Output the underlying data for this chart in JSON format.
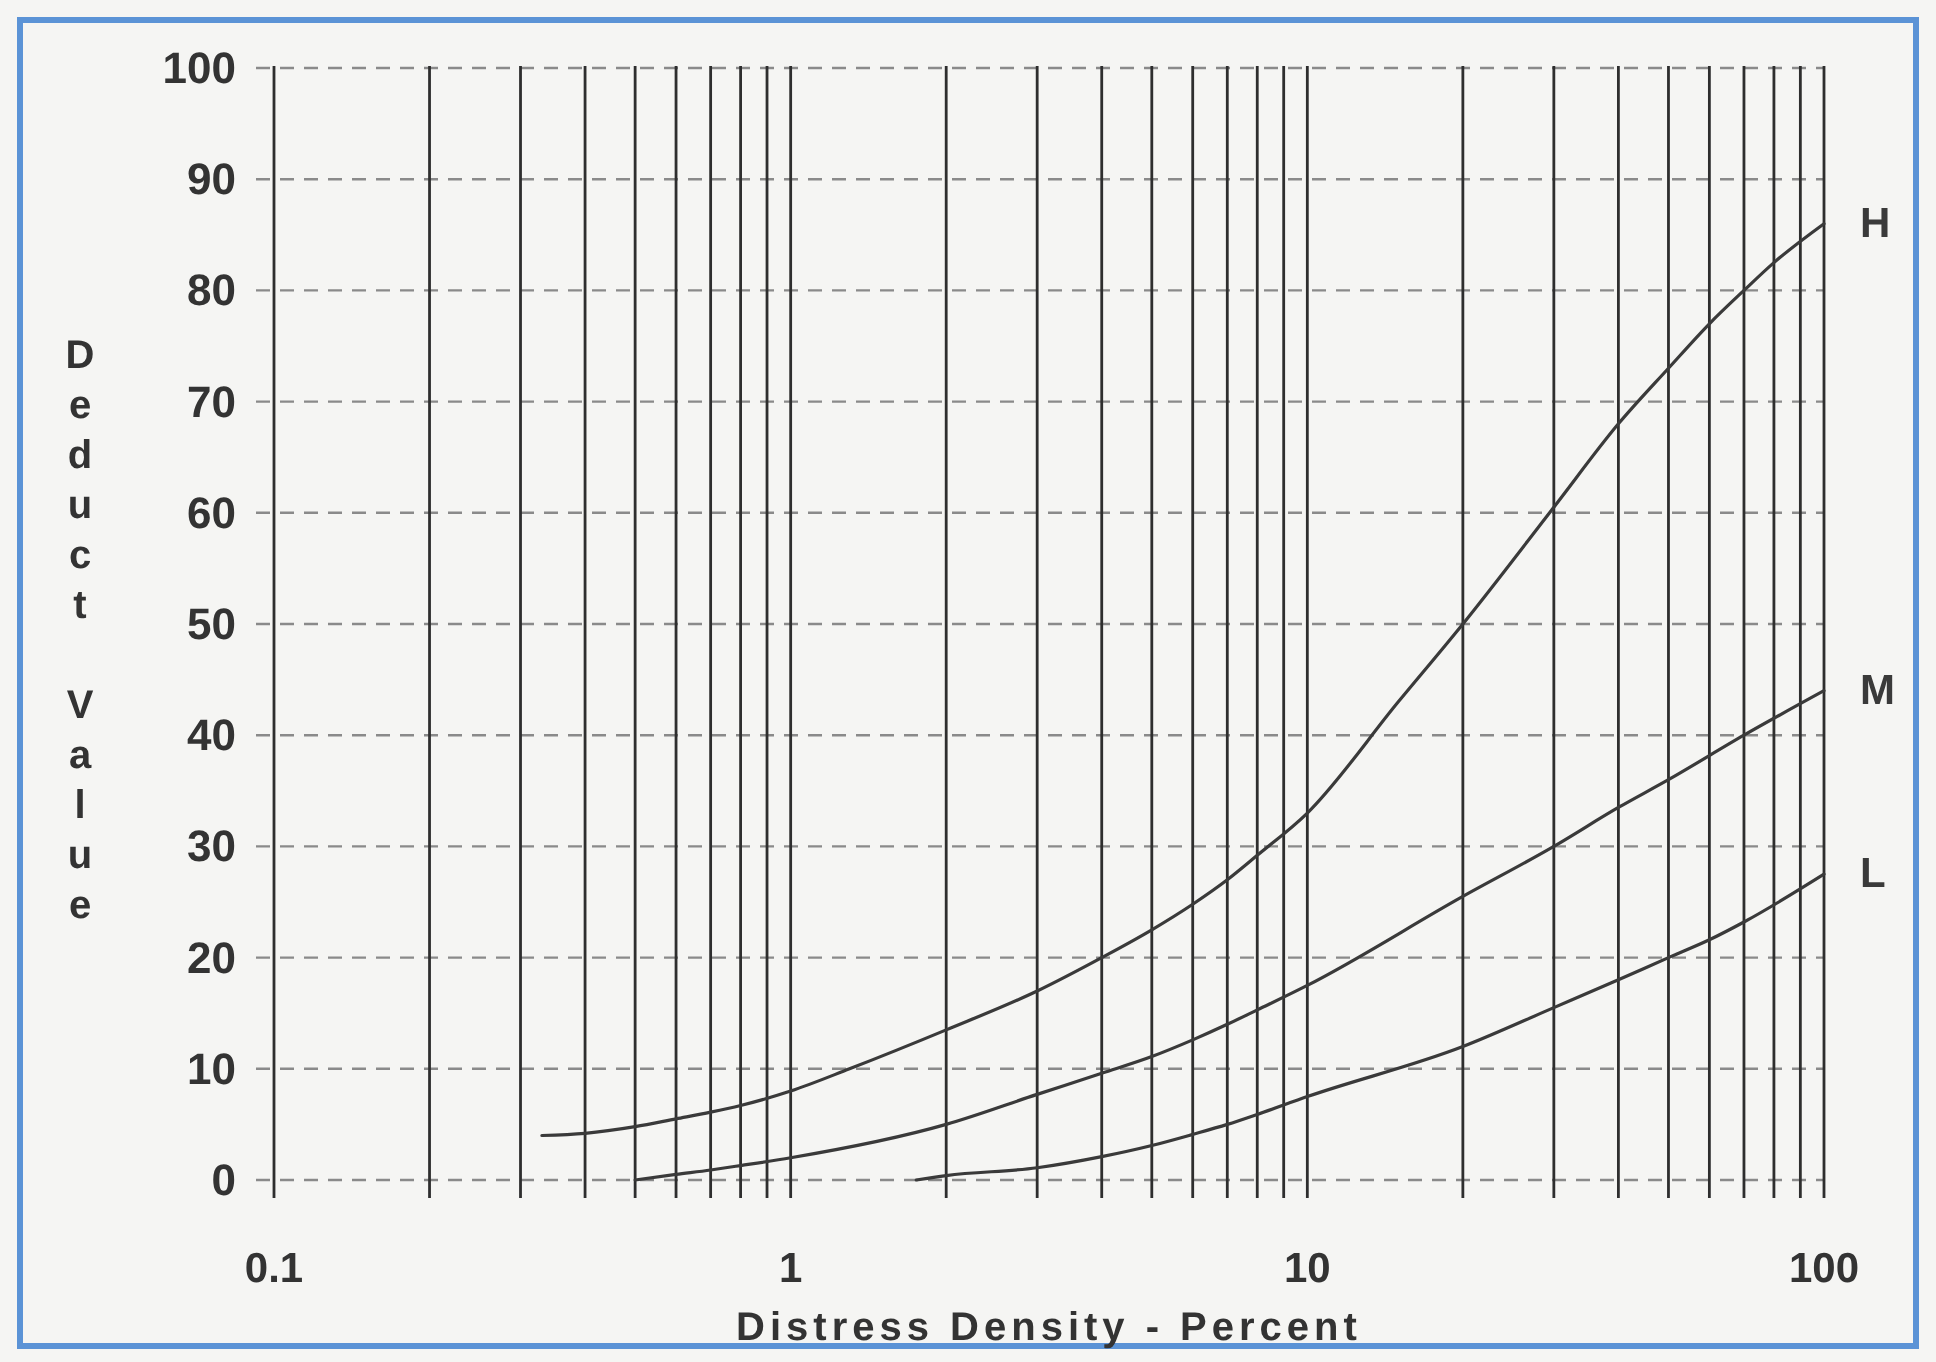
{
  "chart_data": {
    "type": "line",
    "xlabel": "Distress Density - Percent",
    "ylabel": "Deduct Value",
    "log": "x",
    "grid": true,
    "xlim": [
      0.1,
      100
    ],
    "ylim": [
      0,
      100
    ],
    "xticks": [
      0.1,
      {
        "value": 0.2,
        "label": null
      },
      {
        "value": 0.3,
        "label": null
      },
      {
        "value": 0.4,
        "label": null
      },
      {
        "value": 0.5,
        "label": null
      },
      {
        "value": 0.6,
        "label": null
      },
      {
        "value": 0.7,
        "label": null
      },
      {
        "value": 0.8,
        "label": null
      },
      {
        "value": 0.9,
        "label": null
      },
      1,
      {
        "value": 2,
        "label": null
      },
      {
        "value": 3,
        "label": null
      },
      {
        "value": 4,
        "label": null
      },
      {
        "value": 5,
        "label": null
      },
      {
        "value": 6,
        "label": null
      },
      {
        "value": 7,
        "label": null
      },
      {
        "value": 8,
        "label": null
      },
      {
        "value": 9,
        "label": null
      },
      10,
      {
        "value": 20,
        "label": null
      },
      {
        "value": 30,
        "label": null
      },
      {
        "value": 40,
        "label": null
      },
      {
        "value": 50,
        "label": null
      },
      {
        "value": 60,
        "label": null
      },
      {
        "value": 70,
        "label": null
      },
      {
        "value": 80,
        "label": null
      },
      {
        "value": 90,
        "label": null
      },
      100
    ],
    "yticks": [
      0,
      10,
      20,
      30,
      40,
      50,
      60,
      70,
      80,
      90,
      100
    ],
    "series": [
      {
        "name": "H",
        "color": "#3a3a3a",
        "x": [
          0.33,
          0.4,
          0.5,
          0.6,
          0.7,
          0.8,
          1,
          1.3,
          2,
          3,
          4,
          5,
          6,
          7,
          8,
          10,
          15,
          20,
          30,
          40,
          50,
          60,
          70,
          80,
          100
        ],
        "values": [
          4,
          4.2,
          4.8,
          5.5,
          6.1,
          6.7,
          8,
          10,
          13.5,
          17,
          20,
          22.5,
          24.8,
          27,
          29.2,
          33,
          43,
          50,
          60.5,
          68,
          73,
          77,
          80,
          82.5,
          86
        ]
      },
      {
        "name": "M",
        "color": "#3a3a3a",
        "x": [
          0.5,
          0.6,
          0.7,
          0.8,
          1,
          2,
          3,
          4,
          5,
          6,
          7,
          8,
          10,
          20,
          30,
          40,
          50,
          70,
          100
        ],
        "values": [
          0,
          0.5,
          0.9,
          1.3,
          2,
          5,
          7.7,
          9.6,
          11.1,
          12.6,
          14,
          15.3,
          17.5,
          25.5,
          30,
          33.5,
          36,
          40,
          44
        ]
      },
      {
        "name": "L",
        "color": "#3a3a3a",
        "x": [
          1.75,
          2,
          3,
          4,
          5,
          6,
          7,
          8,
          10,
          20,
          30,
          40,
          50,
          60,
          70,
          100
        ],
        "values": [
          0,
          0.4,
          1.1,
          2.1,
          3.1,
          4.1,
          5,
          5.9,
          7.5,
          12,
          15.5,
          18,
          20,
          21.6,
          23.2,
          27.5
        ]
      }
    ]
  }
}
